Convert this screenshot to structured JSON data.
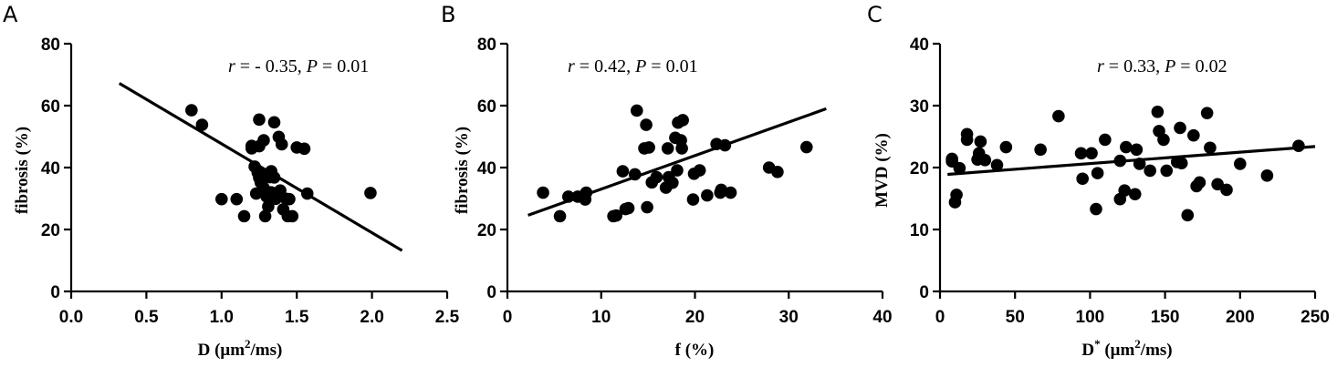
{
  "chart_data": [
    {
      "panel": "A",
      "type": "scatter",
      "xlabel": "D (μm²/ms)",
      "xlabel_parts": {
        "pre": "D (μm",
        "sup": "2",
        "post": "/ms)"
      },
      "ylabel": "fibrosis  (%)",
      "xlim": [
        0,
        2.5
      ],
      "ylim": [
        0,
        80
      ],
      "xticks": [
        "0.0",
        "0.5",
        "1.0",
        "1.5",
        "2.0",
        "2.5"
      ],
      "yticks": [
        "0",
        "20",
        "40",
        "60",
        "80"
      ],
      "annotation": {
        "r_sym": "r",
        "r_val": " = - 0.35, ",
        "p_sym": "P",
        "p_val": " = 0.01"
      },
      "fit": [
        [
          0.32,
          67.2
        ],
        [
          2.2,
          13.2
        ]
      ],
      "points": [
        [
          0.8,
          58.5
        ],
        [
          0.87,
          53.8
        ],
        [
          1.0,
          29.8
        ],
        [
          1.1,
          29.8
        ],
        [
          1.15,
          24.3
        ],
        [
          1.2,
          47.0
        ],
        [
          1.2,
          46.2
        ],
        [
          1.22,
          40.3
        ],
        [
          1.23,
          31.6
        ],
        [
          1.24,
          38.4
        ],
        [
          1.25,
          55.5
        ],
        [
          1.25,
          46.9
        ],
        [
          1.25,
          36.7
        ],
        [
          1.26,
          35.2
        ],
        [
          1.27,
          38.0
        ],
        [
          1.28,
          48.8
        ],
        [
          1.28,
          33.4
        ],
        [
          1.29,
          24.3
        ],
        [
          1.3,
          30.6
        ],
        [
          1.31,
          27.4
        ],
        [
          1.32,
          36.9
        ],
        [
          1.33,
          38.8
        ],
        [
          1.33,
          32.0
        ],
        [
          1.34,
          30.6
        ],
        [
          1.35,
          54.6
        ],
        [
          1.35,
          36.8
        ],
        [
          1.36,
          29.9
        ],
        [
          1.37,
          31.1
        ],
        [
          1.38,
          49.9
        ],
        [
          1.39,
          32.6
        ],
        [
          1.4,
          47.5
        ],
        [
          1.41,
          26.5
        ],
        [
          1.43,
          29.9
        ],
        [
          1.44,
          24.3
        ],
        [
          1.45,
          29.8
        ],
        [
          1.47,
          24.3
        ],
        [
          1.5,
          46.5
        ],
        [
          1.55,
          46.1
        ],
        [
          1.57,
          31.6
        ],
        [
          1.99,
          31.8
        ]
      ]
    },
    {
      "panel": "B",
      "type": "scatter",
      "xlabel": "f (%)",
      "ylabel": "fibrosis (%)",
      "xlim": [
        0,
        40
      ],
      "ylim": [
        0,
        80
      ],
      "xticks": [
        "0",
        "10",
        "20",
        "30",
        "40"
      ],
      "yticks": [
        "0",
        "20",
        "40",
        "60",
        "80"
      ],
      "annotation": {
        "r_sym": "r",
        "r_val": " = 0.42, ",
        "p_sym": "P",
        "p_val": " = 0.01"
      },
      "fit": [
        [
          2.2,
          24.6
        ],
        [
          34.0,
          59.0
        ]
      ],
      "points": [
        [
          3.8,
          31.9
        ],
        [
          5.6,
          24.3
        ],
        [
          6.5,
          30.6
        ],
        [
          7.5,
          30.6
        ],
        [
          8.3,
          29.7
        ],
        [
          8.4,
          31.9
        ],
        [
          11.3,
          24.3
        ],
        [
          11.6,
          24.5
        ],
        [
          12.3,
          38.8
        ],
        [
          12.6,
          26.6
        ],
        [
          12.9,
          26.9
        ],
        [
          13.6,
          37.8
        ],
        [
          13.8,
          58.4
        ],
        [
          14.6,
          46.2
        ],
        [
          14.8,
          53.8
        ],
        [
          14.9,
          27.2
        ],
        [
          15.1,
          46.5
        ],
        [
          15.4,
          35.2
        ],
        [
          15.9,
          36.9
        ],
        [
          16.9,
          33.5
        ],
        [
          17.1,
          46.2
        ],
        [
          17.2,
          36.9
        ],
        [
          17.6,
          35.1
        ],
        [
          17.9,
          49.6
        ],
        [
          18.1,
          39.1
        ],
        [
          18.2,
          54.5
        ],
        [
          18.5,
          48.8
        ],
        [
          18.6,
          46.2
        ],
        [
          18.7,
          55.3
        ],
        [
          19.8,
          29.7
        ],
        [
          19.9,
          38.0
        ],
        [
          20.5,
          39.1
        ],
        [
          21.3,
          31.0
        ],
        [
          22.3,
          47.6
        ],
        [
          22.7,
          31.9
        ],
        [
          22.8,
          32.8
        ],
        [
          23.2,
          47.2
        ],
        [
          23.8,
          31.9
        ],
        [
          27.9,
          40.0
        ],
        [
          28.8,
          38.6
        ],
        [
          31.9,
          46.6
        ]
      ]
    },
    {
      "panel": "C",
      "type": "scatter",
      "xlabel": "D* (μm²/ms)",
      "xlabel_parts": {
        "pre": "D",
        "sup1": "*",
        "mid": " (μm",
        "sup2": "2",
        "post": "/ms)"
      },
      "ylabel": "MVD (%)",
      "xlim": [
        0,
        250
      ],
      "ylim": [
        0,
        40
      ],
      "xticks": [
        "0",
        "50",
        "100",
        "150",
        "200",
        "250"
      ],
      "yticks": [
        "0",
        "10",
        "20",
        "30",
        "40"
      ],
      "annotation": {
        "r_sym": "r",
        "r_val": " = 0.33, ",
        "p_sym": "P",
        "p_val": " = 0.02"
      },
      "fit": [
        [
          5,
          18.9
        ],
        [
          250,
          23.4
        ]
      ],
      "points": [
        [
          8,
          21.4
        ],
        [
          8,
          21.0
        ],
        [
          10,
          14.4
        ],
        [
          11,
          15.6
        ],
        [
          13,
          19.9
        ],
        [
          18,
          25.4
        ],
        [
          18,
          24.5
        ],
        [
          25,
          21.3
        ],
        [
          26,
          22.3
        ],
        [
          27,
          24.2
        ],
        [
          30,
          21.2
        ],
        [
          38,
          20.4
        ],
        [
          44,
          23.3
        ],
        [
          67,
          22.9
        ],
        [
          79,
          28.3
        ],
        [
          94,
          22.3
        ],
        [
          95,
          18.2
        ],
        [
          101,
          22.3
        ],
        [
          104,
          13.3
        ],
        [
          105,
          19.1
        ],
        [
          110,
          24.5
        ],
        [
          120,
          21.1
        ],
        [
          120,
          14.9
        ],
        [
          123,
          16.3
        ],
        [
          124,
          23.3
        ],
        [
          130,
          15.7
        ],
        [
          131,
          22.9
        ],
        [
          133,
          20.6
        ],
        [
          140,
          19.5
        ],
        [
          145,
          29.0
        ],
        [
          146,
          25.9
        ],
        [
          149,
          24.5
        ],
        [
          151,
          19.5
        ],
        [
          158,
          20.9
        ],
        [
          160,
          26.4
        ],
        [
          161,
          20.7
        ],
        [
          165,
          12.3
        ],
        [
          169,
          25.2
        ],
        [
          171,
          17.0
        ],
        [
          173,
          17.6
        ],
        [
          178,
          28.8
        ],
        [
          180,
          23.2
        ],
        [
          185,
          17.3
        ],
        [
          191,
          16.4
        ],
        [
          200,
          20.6
        ],
        [
          218,
          18.7
        ],
        [
          239,
          23.5
        ]
      ]
    }
  ]
}
